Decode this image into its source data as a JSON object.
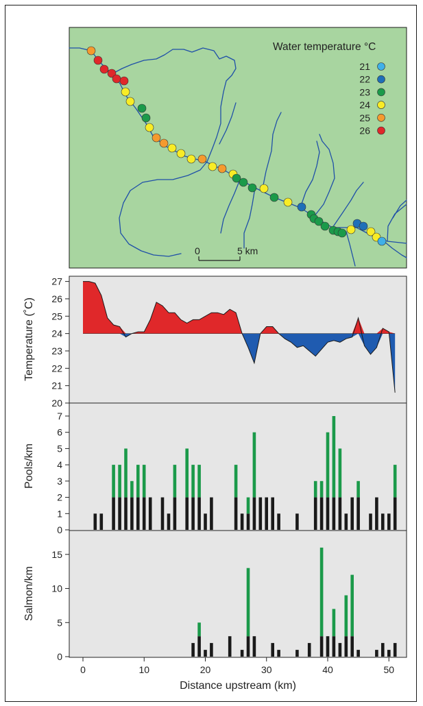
{
  "map": {
    "legend_title": "Water temperature °C",
    "legend": [
      {
        "value": "21",
        "color": "#3fb0e8"
      },
      {
        "value": "22",
        "color": "#1f6fb8"
      },
      {
        "value": "23",
        "color": "#1b9a4a"
      },
      {
        "value": "24",
        "color": "#f8ec26"
      },
      {
        "value": "25",
        "color": "#f59a2e"
      },
      {
        "value": "26",
        "color": "#e0282a"
      }
    ],
    "scale_start": "0",
    "scale_end": "5 km",
    "colors": {
      "land": "#a8d5a0",
      "river": "#1f4fa8"
    }
  },
  "chart_data": [
    {
      "type": "area",
      "ylabel": "Temperature (˚C)",
      "baseline": 24,
      "ylim": [
        20,
        27.3
      ],
      "yticks": [
        20,
        21,
        22,
        23,
        24,
        25,
        26,
        27
      ],
      "above_color": "#e0282a",
      "below_color": "#1f5bb0",
      "x": [
        0,
        1,
        2,
        3,
        4,
        5,
        6,
        7,
        8,
        9,
        10,
        11,
        12,
        13,
        14,
        15,
        16,
        17,
        18,
        19,
        20,
        21,
        22,
        23,
        24,
        25,
        26,
        27,
        28,
        29,
        30,
        31,
        32,
        33,
        34,
        35,
        36,
        37,
        38,
        39,
        40,
        41,
        42,
        43,
        44,
        45,
        46,
        47,
        48,
        49,
        50,
        51
      ],
      "y": [
        27,
        27,
        26.9,
        26.2,
        24.9,
        24.5,
        24.4,
        23.8,
        24,
        24.1,
        24.1,
        24.8,
        25.8,
        25.6,
        25.2,
        25.2,
        24.8,
        24.6,
        24.8,
        24.8,
        25,
        25.2,
        25.2,
        25.1,
        25.4,
        25.2,
        24,
        23.2,
        22.3,
        24,
        24.4,
        24.4,
        24,
        23.7,
        23.5,
        23.2,
        23.3,
        23,
        22.7,
        23.1,
        23.5,
        23.6,
        23.5,
        23.7,
        23.8,
        24.9,
        23.3,
        22.8,
        23.2,
        24.3,
        24.1,
        20.6
      ]
    },
    {
      "type": "bar",
      "ylabel": "Pools/km",
      "ylim": [
        0,
        7.8
      ],
      "yticks": [
        0,
        1,
        2,
        3,
        4,
        5,
        6,
        7
      ],
      "series": [
        {
          "color": "#1a1a1a",
          "values": [
            0,
            0,
            1,
            1,
            0,
            2,
            2,
            2,
            2,
            2,
            2,
            2,
            0,
            2,
            1,
            2,
            0,
            2,
            2,
            2,
            1,
            2,
            0,
            0,
            0,
            2,
            1,
            1,
            2,
            2,
            2,
            2,
            1,
            0,
            0,
            1,
            0,
            0,
            2,
            2,
            2,
            2,
            2,
            1,
            2,
            2,
            0,
            1,
            2,
            1,
            1,
            2
          ]
        },
        {
          "color": "#1b9a4a",
          "values": [
            0,
            0,
            0,
            0,
            0,
            2,
            2,
            3,
            1,
            2,
            2,
            0,
            0,
            0,
            0,
            2,
            0,
            3,
            2,
            2,
            0,
            0,
            0,
            0,
            0,
            2,
            0,
            1,
            4,
            0,
            0,
            0,
            0,
            0,
            0,
            0,
            0,
            0,
            1,
            1,
            4,
            5,
            3,
            0,
            0,
            1,
            0,
            0,
            0,
            0,
            0,
            2
          ]
        }
      ]
    },
    {
      "type": "bar",
      "ylabel": "Salmon/km",
      "xlabel": "Distance upstream (km)",
      "ylim": [
        0,
        18.5
      ],
      "yticks": [
        0,
        5,
        10,
        15
      ],
      "xticks": [
        0,
        10,
        20,
        30,
        40,
        50
      ],
      "series": [
        {
          "color": "#1a1a1a",
          "values": [
            0,
            0,
            0,
            0,
            0,
            0,
            0,
            0,
            0,
            0,
            0,
            0,
            0,
            0,
            0,
            0,
            0,
            0,
            2,
            3,
            1,
            2,
            0,
            0,
            3,
            0,
            1,
            3,
            3,
            0,
            0,
            2,
            1,
            0,
            0,
            1,
            0,
            2,
            0,
            3,
            3,
            3,
            2,
            3,
            3,
            1,
            0,
            0,
            1,
            2,
            1,
            2
          ]
        },
        {
          "color": "#1b9a4a",
          "values": [
            0,
            0,
            0,
            0,
            0,
            0,
            0,
            0,
            0,
            0,
            0,
            0,
            0,
            0,
            0,
            0,
            0,
            0,
            0,
            2,
            0,
            0,
            0,
            0,
            0,
            0,
            0,
            10,
            0,
            0,
            0,
            0,
            0,
            0,
            0,
            0,
            0,
            0,
            0,
            13,
            0,
            4,
            0,
            6,
            9,
            0,
            0,
            0,
            0,
            0,
            0,
            0
          ]
        }
      ]
    }
  ]
}
